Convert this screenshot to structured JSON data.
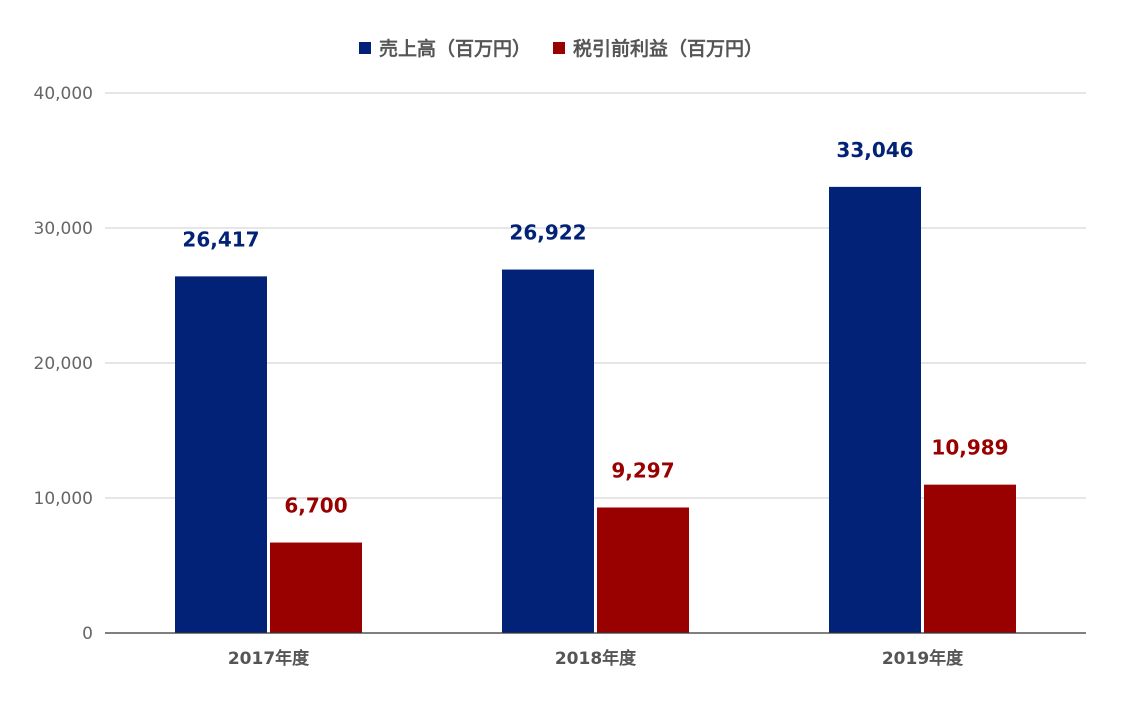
{
  "chart_data": {
    "type": "bar",
    "title": "",
    "xlabel": "",
    "ylabel": "",
    "categories": [
      "2017年度",
      "2018年度",
      "2019年度"
    ],
    "series": [
      {
        "name": "売上高（百万円）",
        "color": "#022277",
        "values": [
          26417,
          26922,
          33046
        ],
        "labels": [
          "26,417",
          "26,922",
          "33,046"
        ]
      },
      {
        "name": "税引前利益（百万円）",
        "color": "#990000",
        "values": [
          6700,
          9297,
          10989
        ],
        "labels": [
          "6,700",
          "9,297",
          "10,989"
        ]
      }
    ],
    "ylim": [
      0,
      40000
    ],
    "yticks": [
      0,
      10000,
      20000,
      30000,
      40000
    ],
    "ytick_labels": [
      "0",
      "10,000",
      "20,000",
      "30,000",
      "40,000"
    ],
    "grid": true,
    "legend_position": "top-center"
  }
}
